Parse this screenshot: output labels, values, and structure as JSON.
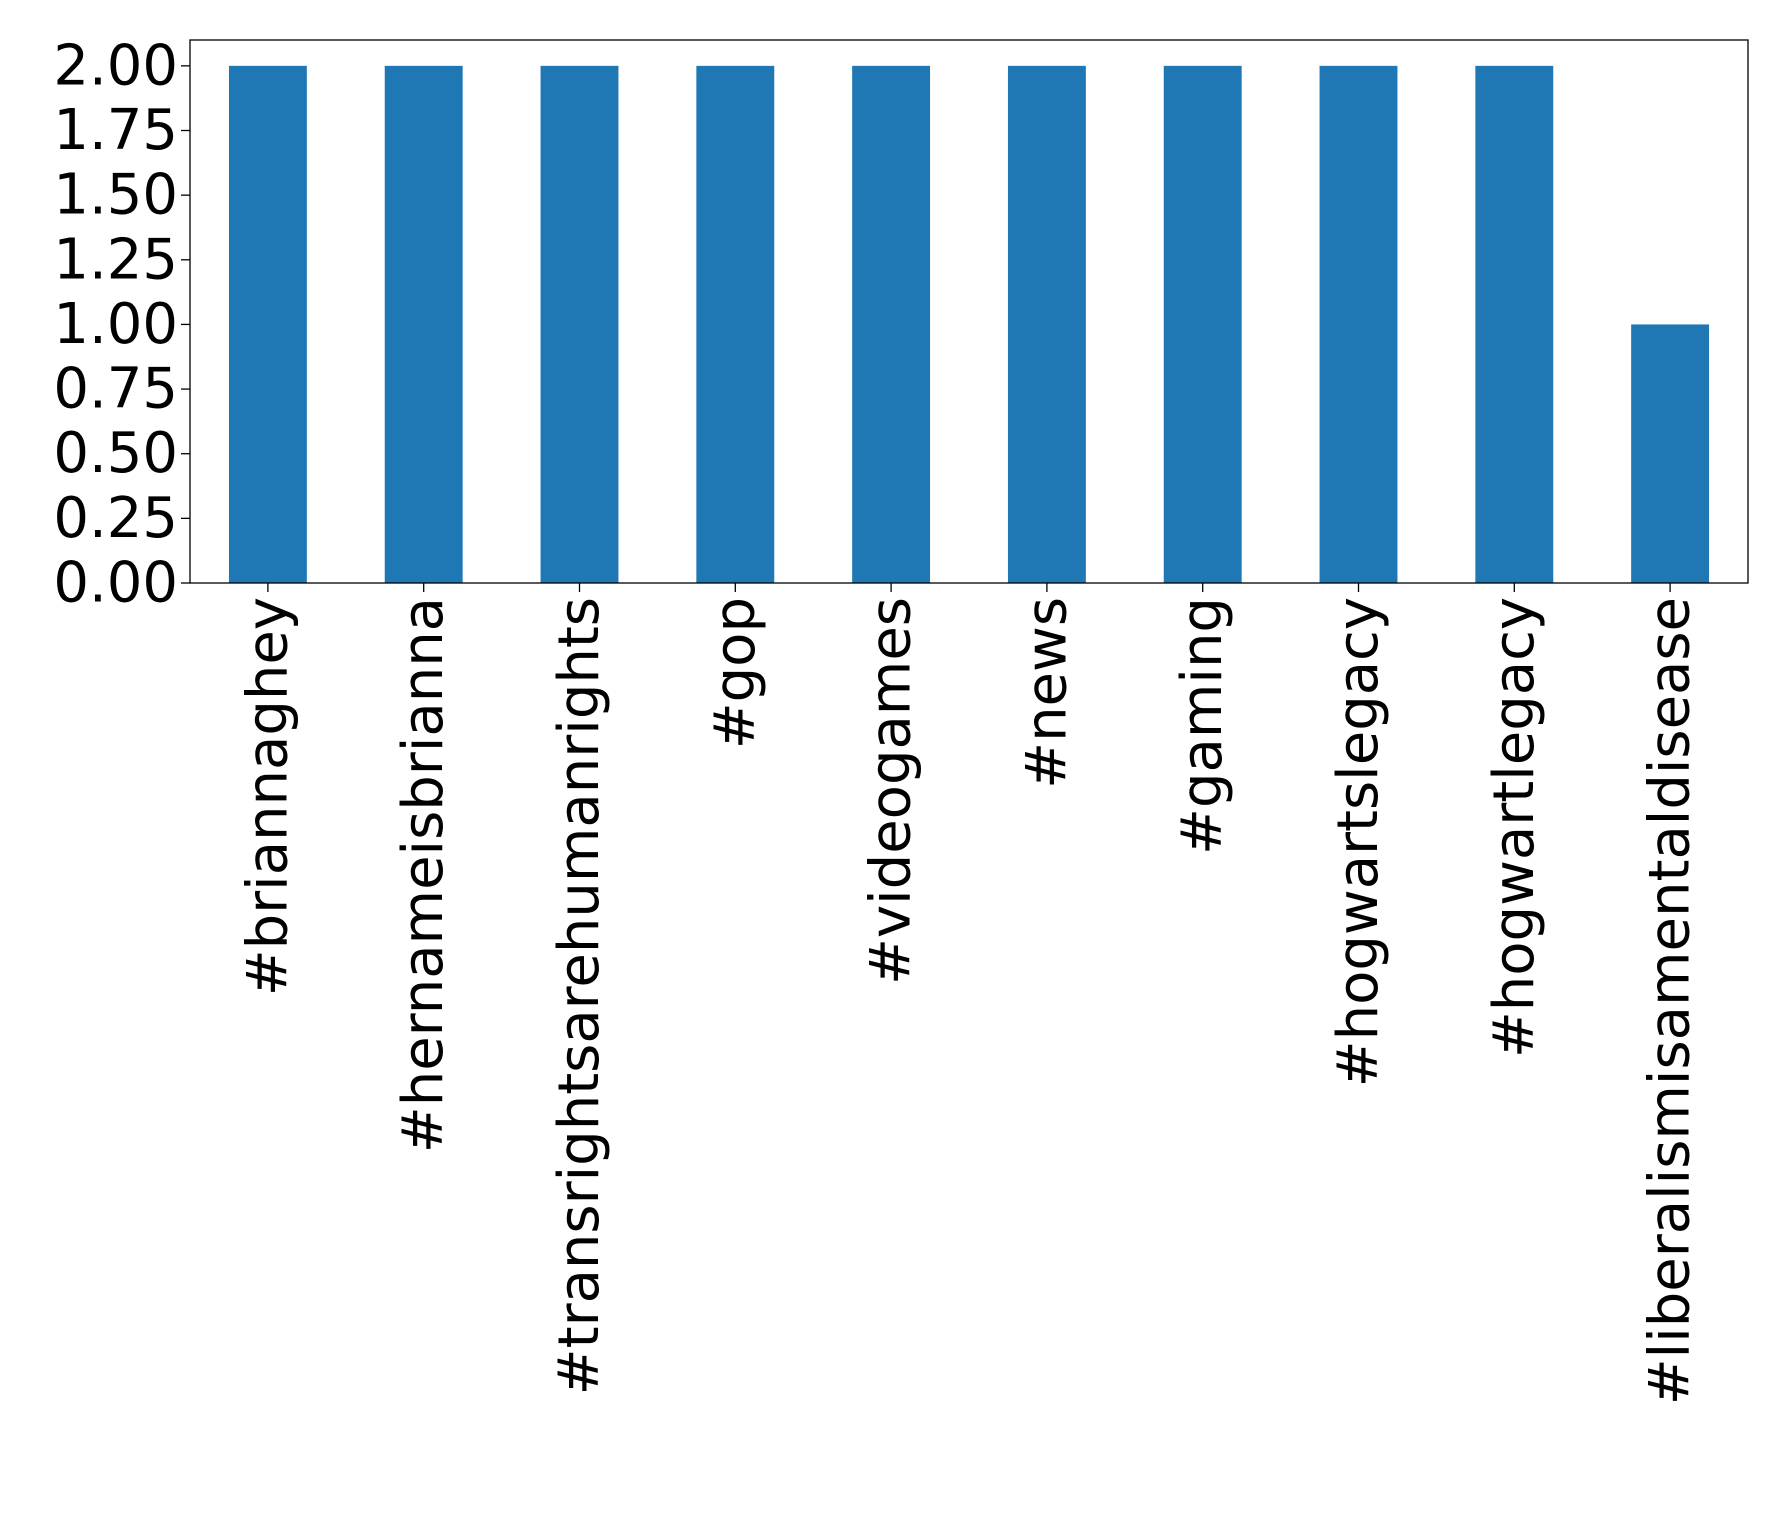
{
  "chart_data": {
    "type": "bar",
    "title": "",
    "xlabel": "",
    "ylabel": "",
    "categories": [
      "#briannaghey",
      "#hernameisbrianna",
      "#transrightsarehumanrights",
      "#gop",
      "#videogames",
      "#news",
      "#gaming",
      "#hogwartslegacy",
      "#hogwartlegacy",
      "#liberalismisamentaldisease"
    ],
    "values": [
      2,
      2,
      2,
      2,
      2,
      2,
      2,
      2,
      2,
      1
    ],
    "ylim": [
      0,
      2.1
    ],
    "yticks": [
      0,
      0.25,
      0.5,
      0.75,
      1.0,
      1.25,
      1.5,
      1.75,
      2.0
    ],
    "ytick_labels": [
      "0.00",
      "0.25",
      "0.50",
      "0.75",
      "1.00",
      "1.25",
      "1.50",
      "1.75",
      "2.00"
    ],
    "bar_color": "#1f77b4",
    "grid": false,
    "legend": "none"
  }
}
